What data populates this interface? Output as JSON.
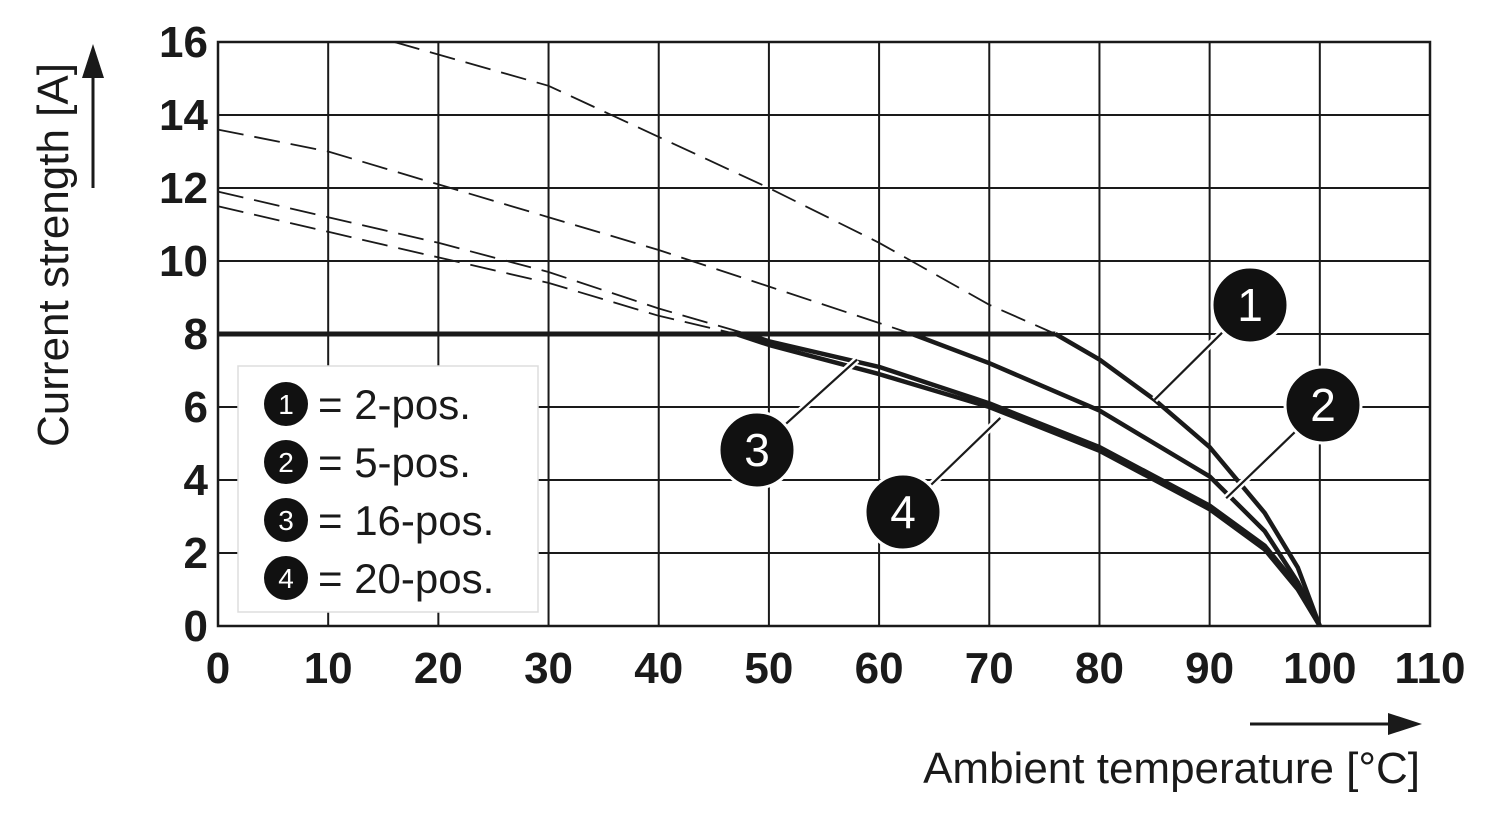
{
  "chart_data": {
    "type": "line",
    "xlabel": "Ambient temperature [°C]",
    "ylabel": "Current strength [A]",
    "xlim": [
      0,
      110
    ],
    "ylim": [
      0,
      16
    ],
    "xticks": [
      0,
      10,
      20,
      30,
      40,
      50,
      60,
      70,
      80,
      90,
      100,
      110
    ],
    "yticks": [
      0,
      2,
      4,
      6,
      8,
      10,
      12,
      14,
      16
    ],
    "x_tick_labels": [
      "0",
      "10",
      "20",
      "30",
      "40",
      "50",
      "60",
      "70",
      "80",
      "90",
      "100",
      "110"
    ],
    "y_tick_labels": [
      "0",
      "2",
      "4",
      "6",
      "8",
      "10",
      "12",
      "14",
      "16"
    ],
    "grid": true,
    "max_current_line": 8,
    "legend": {
      "placement": "lower-left",
      "entries": [
        {
          "num": "1",
          "text": "= 2-pos."
        },
        {
          "num": "2",
          "text": "= 5-pos."
        },
        {
          "num": "3",
          "text": "= 16-pos."
        },
        {
          "num": "4",
          "text": "= 20-pos."
        }
      ]
    },
    "series": [
      {
        "id": "1",
        "x": [
          16,
          30,
          40,
          50,
          60,
          70,
          76,
          80,
          85,
          90,
          95,
          98,
          100
        ],
        "y": [
          16,
          14.8,
          13.4,
          12.0,
          10.5,
          8.8,
          8.0,
          7.3,
          6.2,
          4.9,
          3.1,
          1.6,
          0
        ]
      },
      {
        "id": "2",
        "x": [
          0,
          10,
          20,
          30,
          40,
          50,
          60,
          63,
          70,
          80,
          90,
          95,
          98,
          100
        ],
        "y": [
          13.6,
          13.0,
          12.1,
          11.2,
          10.3,
          9.3,
          8.3,
          8.0,
          7.2,
          5.9,
          4.1,
          2.6,
          1.2,
          0
        ]
      },
      {
        "id": "3",
        "x": [
          0,
          10,
          20,
          30,
          40,
          48,
          50,
          60,
          70,
          80,
          90,
          95,
          98,
          100
        ],
        "y": [
          11.9,
          11.2,
          10.5,
          9.7,
          8.7,
          8.0,
          7.8,
          7.1,
          6.1,
          4.9,
          3.3,
          2.2,
          1.1,
          0
        ]
      },
      {
        "id": "4",
        "x": [
          0,
          10,
          20,
          30,
          40,
          47,
          50,
          60,
          70,
          80,
          90,
          95,
          98,
          100
        ],
        "y": [
          11.5,
          10.8,
          10.1,
          9.4,
          8.5,
          8.0,
          7.7,
          6.9,
          6.0,
          4.8,
          3.2,
          2.1,
          1.0,
          0
        ]
      }
    ],
    "callouts": [
      "1",
      "2",
      "3",
      "4"
    ]
  }
}
